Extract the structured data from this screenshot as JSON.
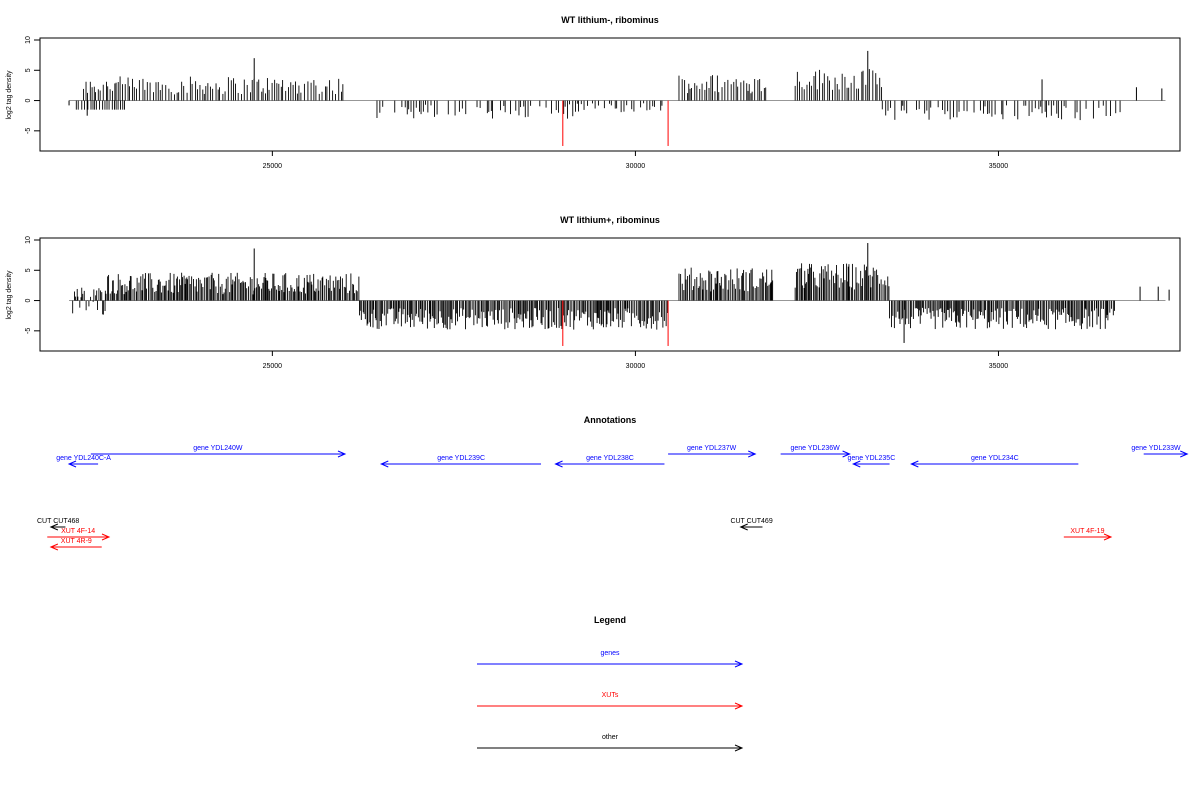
{
  "chart_data": [
    {
      "type": "bar",
      "title": "WT lithium-, ribominus",
      "ylabel": "log2 tag density",
      "xlim": [
        21800,
        37500
      ],
      "ylim": [
        -8,
        10
      ],
      "xticks": [
        25000,
        30000,
        35000
      ],
      "yticks": [
        -5,
        0,
        5,
        10
      ],
      "series": [
        {
          "color": "#000000",
          "segments": [
            {
              "start": 22300,
              "end": 23000,
              "mean": 0,
              "amp": 0,
              "neg": -1.5
            },
            {
              "start": 22400,
              "end": 26000,
              "mean": 2.5,
              "amp": 1.5,
              "neg": 0
            },
            {
              "start": 26300,
              "end": 29200,
              "mean": -1.8,
              "amp": 1.2,
              "neg": 0
            },
            {
              "start": 29200,
              "end": 30400,
              "mean": -1.2,
              "amp": 0.8,
              "neg": 0
            },
            {
              "start": 30600,
              "end": 31800,
              "mean": 2.8,
              "amp": 1.6,
              "neg": 0
            },
            {
              "start": 32200,
              "end": 33400,
              "mean": 3.5,
              "amp": 1.8,
              "neg": 0
            },
            {
              "start": 33400,
              "end": 36700,
              "mean": -2.0,
              "amp": 1.3,
              "neg": 0
            }
          ],
          "peaks": [
            {
              "x": 24750,
              "y": 7.0
            },
            {
              "x": 33200,
              "y": 8.2
            },
            {
              "x": 35600,
              "y": 3.5
            },
            {
              "x": 36900,
              "y": 2.2
            },
            {
              "x": 37250,
              "y": 2.0
            },
            {
              "x": 22450,
              "y": -2.5
            },
            {
              "x": 22200,
              "y": -0.8
            }
          ]
        },
        {
          "color": "#ff0000",
          "bars": [
            {
              "x": 29000,
              "y": -7.5
            },
            {
              "x": 30450,
              "y": -7.5
            }
          ]
        }
      ]
    },
    {
      "type": "bar",
      "title": "WT lithium+, ribominus",
      "ylabel": "log2 tag density",
      "xlim": [
        21800,
        37500
      ],
      "ylim": [
        -8,
        10
      ],
      "xticks": [
        25000,
        30000,
        35000
      ],
      "yticks": [
        -5,
        0,
        5,
        10
      ],
      "series": [
        {
          "color": "#000000",
          "segments": [
            {
              "start": 22250,
              "end": 22700,
              "mean": 0,
              "amp": 2.5,
              "neg": 0
            },
            {
              "start": 22700,
              "end": 26200,
              "mean": 2.8,
              "amp": 1.8,
              "neg": 0
            },
            {
              "start": 26200,
              "end": 30450,
              "mean": -3.0,
              "amp": 1.8,
              "neg": 0
            },
            {
              "start": 30600,
              "end": 31900,
              "mean": 3.5,
              "amp": 2.0,
              "neg": 0
            },
            {
              "start": 32200,
              "end": 33500,
              "mean": 4.0,
              "amp": 2.2,
              "neg": 0
            },
            {
              "start": 33500,
              "end": 36600,
              "mean": -3.0,
              "amp": 1.8,
              "neg": 0
            }
          ],
          "peaks": [
            {
              "x": 24750,
              "y": 8.6
            },
            {
              "x": 33200,
              "y": 9.5
            },
            {
              "x": 36950,
              "y": 2.3
            },
            {
              "x": 37200,
              "y": 2.3
            },
            {
              "x": 37350,
              "y": 1.8
            },
            {
              "x": 33700,
              "y": -7.0
            }
          ]
        },
        {
          "color": "#ff0000",
          "bars": [
            {
              "x": 29000,
              "y": -7.5
            },
            {
              "x": 30450,
              "y": -7.5
            }
          ]
        }
      ]
    }
  ],
  "annotations": {
    "title": "Annotations",
    "features": [
      {
        "label": "gene YDL240C-A",
        "start": 22600,
        "end": 22200,
        "row": 2,
        "color": "#0000ff",
        "category": "gene"
      },
      {
        "label": "gene YDL240W",
        "start": 22500,
        "end": 26000,
        "row": 1,
        "color": "#0000ff",
        "category": "gene"
      },
      {
        "label": "gene YDL239C",
        "start": 28700,
        "end": 26500,
        "row": 2,
        "color": "#0000ff",
        "category": "gene"
      },
      {
        "label": "gene YDL238C",
        "start": 30400,
        "end": 28900,
        "row": 2,
        "color": "#0000ff",
        "category": "gene"
      },
      {
        "label": "gene YDL237W",
        "start": 30450,
        "end": 31650,
        "row": 1,
        "color": "#0000ff",
        "category": "gene"
      },
      {
        "label": "gene YDL236W",
        "start": 32000,
        "end": 32950,
        "row": 1,
        "color": "#0000ff",
        "category": "gene"
      },
      {
        "label": "gene YDL235C",
        "start": 33500,
        "end": 33000,
        "row": 2,
        "color": "#0000ff",
        "category": "gene"
      },
      {
        "label": "gene YDL234C",
        "start": 36100,
        "end": 33800,
        "row": 2,
        "color": "#0000ff",
        "category": "gene"
      },
      {
        "label": "gene YDL233W",
        "start": 37000,
        "end": 37600,
        "row": 1,
        "color": "#0000ff",
        "category": "gene"
      },
      {
        "label": "CUT CUT468",
        "start": 22150,
        "end": 21950,
        "row": 4,
        "color": "#000000",
        "category": "other"
      },
      {
        "label": "XUT 4F-14",
        "start": 21900,
        "end": 22750,
        "row": 5,
        "color": "#ff0000",
        "category": "xut"
      },
      {
        "label": "XUT 4R-9",
        "start": 22650,
        "end": 21950,
        "row": 6,
        "color": "#ff0000",
        "category": "xut"
      },
      {
        "label": "CUT CUT469",
        "start": 31750,
        "end": 31450,
        "row": 4,
        "color": "#000000",
        "category": "other"
      },
      {
        "label": "XUT 4F-19",
        "start": 35900,
        "end": 36550,
        "row": 5,
        "color": "#ff0000",
        "category": "xut"
      }
    ]
  },
  "legend": {
    "title": "Legend",
    "items": [
      {
        "label": "genes",
        "color": "#0000ff"
      },
      {
        "label": "XUTs",
        "color": "#ff0000"
      },
      {
        "label": "other",
        "color": "#000000"
      }
    ]
  }
}
